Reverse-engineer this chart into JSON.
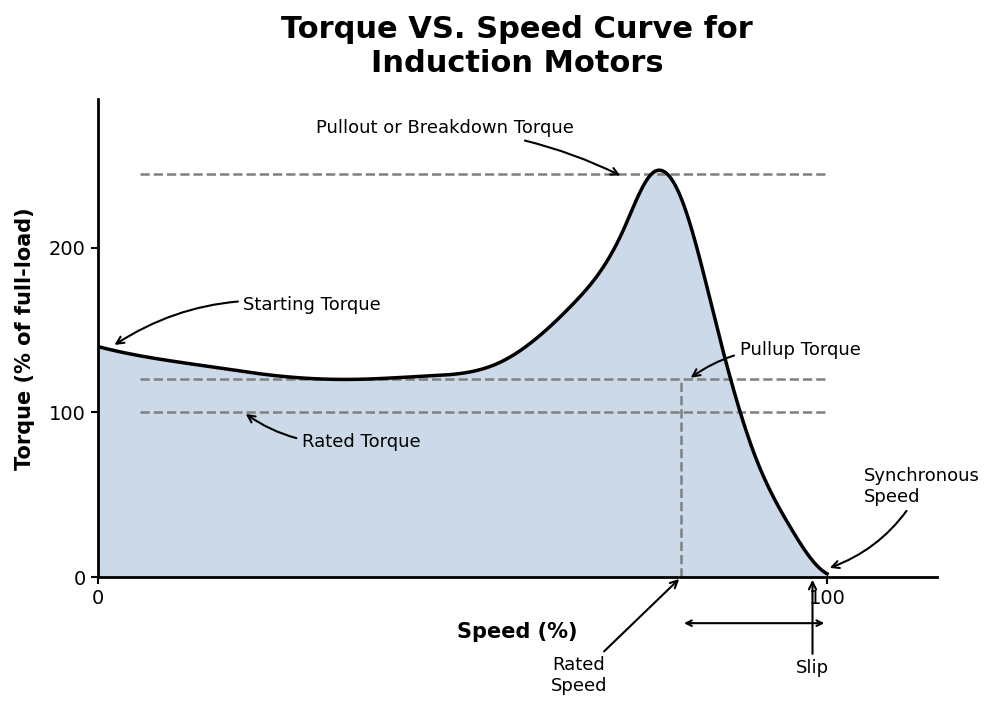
{
  "title": "Torque VS. Speed Curve for\nInduction Motors",
  "xlabel": "Speed (%)",
  "ylabel": "Torque (% of full-load)",
  "background_color": "#ffffff",
  "fill_color": "#ccd9e8",
  "curve_color": "#000000",
  "dashed_color": "#808080",
  "title_fontsize": 22,
  "axis_label_fontsize": 15,
  "annotation_fontsize": 13,
  "ylim": [
    0,
    290
  ],
  "xlim": [
    0,
    115
  ],
  "yticks": [
    0,
    100,
    200
  ],
  "xticks": [
    0,
    100
  ],
  "rated_speed_x": 80,
  "synchronous_speed_x": 100,
  "pullout_torque_y": 245,
  "pullup_torque_y": 120,
  "rated_torque_y": 100,
  "starting_torque_y": 140
}
